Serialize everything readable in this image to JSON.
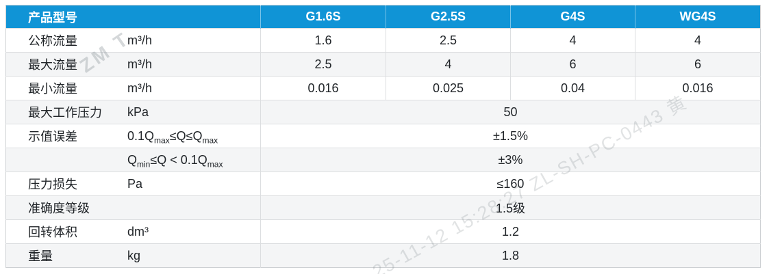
{
  "table": {
    "header": {
      "product_model_label": "产品型号",
      "models": [
        "G1.6S",
        "G2.5S",
        "G4S",
        "WG4S"
      ]
    },
    "rows": [
      {
        "label": "公称流量",
        "unit": "m³/h",
        "values": [
          "1.6",
          "2.5",
          "4",
          "4"
        ]
      },
      {
        "label": "最大流量",
        "unit": "m³/h",
        "values": [
          "2.5",
          "4",
          "6",
          "6"
        ]
      },
      {
        "label": "最小流量",
        "unit": "m³/h",
        "values": [
          "0.016",
          "0.025",
          "0.04",
          "0.016"
        ]
      },
      {
        "label": "最大工作压力",
        "unit": "kPa",
        "merged_value": "50"
      },
      {
        "label": "示值误差",
        "condition": "0.1Q_{max}≤Q≤Q_{max}",
        "merged_value": "±1.5%"
      },
      {
        "label": "",
        "condition": "Q_{min}≤Q < 0.1Q_{max}",
        "merged_value": "±3%"
      },
      {
        "label": "压力损失",
        "unit": "Pa",
        "merged_value": "≤160"
      },
      {
        "label": "准确度等级",
        "unit": "",
        "merged_value": "1.5级"
      },
      {
        "label": "回转体积",
        "unit": "dm³",
        "merged_value": "1.2"
      },
      {
        "label": "重量",
        "unit": "kg",
        "merged_value": "1.8"
      }
    ]
  },
  "watermarks": {
    "fragment_left": "ZM T",
    "fragment_diagonal": "25-11-12 15:28:27 ZL-SH-PC-0443 黄"
  },
  "colors": {
    "header_bg": "#1094d6",
    "header_text": "#ffffff",
    "stripe_bg": "#f4f5f6",
    "border": "#dcdee0",
    "text": "#202428"
  }
}
